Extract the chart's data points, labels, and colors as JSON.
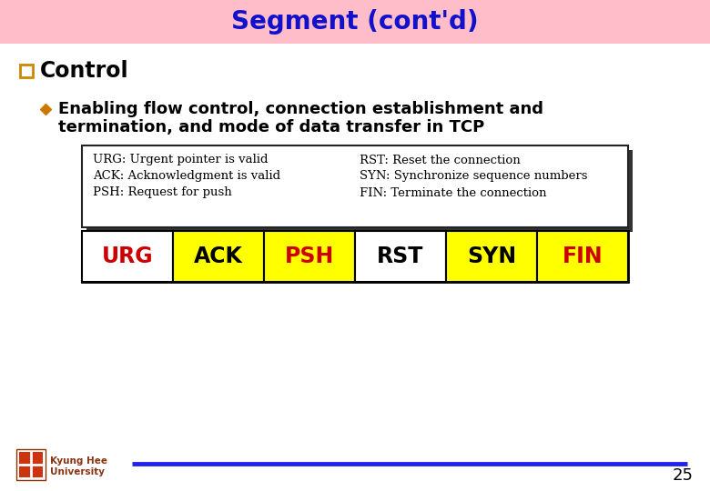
{
  "title": "Segment (cont'd)",
  "title_color": "#1111CC",
  "title_bg_color": "#FFBDCA",
  "title_fontsize": 20,
  "section_label": "Control",
  "section_color": "#000000",
  "bullet_text_line1": "Enabling flow control, connection establishment and",
  "bullet_text_line2": "termination, and mode of data transfer in TCP",
  "bullet_color": "#000000",
  "bullet_fontsize": 13,
  "diamond_color": "#CC7700",
  "checkbox_color": "#CC8800",
  "info_lines_left": [
    "URG: Urgent pointer is valid",
    "ACK: Acknowledgment is valid",
    "PSH: Request for push"
  ],
  "info_lines_right": [
    "RST: Reset the connection",
    "SYN: Synchronize sequence numbers",
    "FIN: Terminate the connection"
  ],
  "info_fontsize": 9.5,
  "segments": [
    {
      "label": "URG",
      "bg": "#FFFFFF",
      "fg": "#CC0000"
    },
    {
      "label": "ACK",
      "bg": "#FFFF00",
      "fg": "#000000"
    },
    {
      "label": "PSH",
      "bg": "#FFFF00",
      "fg": "#CC0000"
    },
    {
      "label": "RST",
      "bg": "#FFFFFF",
      "fg": "#000000"
    },
    {
      "label": "SYN",
      "bg": "#FFFF00",
      "fg": "#000000"
    },
    {
      "label": "FIN",
      "bg": "#FFFF00",
      "fg": "#CC0000"
    }
  ],
  "seg_fontsize": 17,
  "footer_text1": "Kyung Hee",
  "footer_text2": "University",
  "footer_page": "25",
  "footer_line_color": "#2222EE",
  "background_color": "#FFFFFF"
}
